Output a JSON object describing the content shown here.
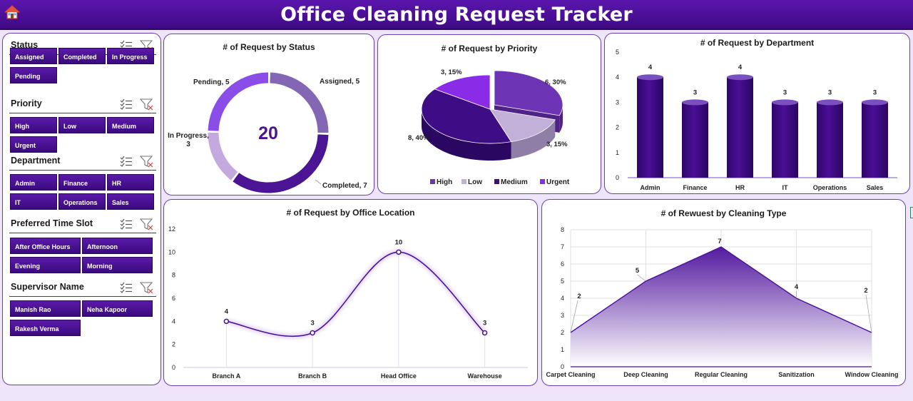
{
  "title": "Office Cleaning Request Tracker",
  "header_icon": "home-icon",
  "slicers": [
    {
      "title": "Status",
      "items": [
        "Assigned",
        "Completed",
        "In Progress",
        "Pending"
      ]
    },
    {
      "title": "Priority",
      "items": [
        "High",
        "Low",
        "Medium",
        "Urgent"
      ]
    },
    {
      "title": "Department",
      "items": [
        "Admin",
        "Finance",
        "HR",
        "IT",
        "Operations",
        "Sales"
      ]
    },
    {
      "title": "Preferred Time Slot",
      "items": [
        "After Office Hours",
        "Afternoon",
        "Evening",
        "Morning"
      ]
    },
    {
      "title": "Supervisor Name",
      "items": [
        "Manish Rao",
        "Neha Kapoor",
        "Rakesh Verma"
      ]
    }
  ],
  "slicer_icons": [
    "multi-select-icon",
    "clear-filter-icon"
  ],
  "colors": {
    "header": "#4b0f9a",
    "accent": "#4b0f9a",
    "dark": "#3a0a7a",
    "light": "#8a5cf0",
    "pale": "#c2a8dc",
    "mid": "#7d5fb0"
  },
  "charts": {
    "status": {
      "title": "# of Request  by Status",
      "total": "20"
    },
    "priority": {
      "title": "# of Request  by Priority"
    },
    "department": {
      "title": "# of Request  by Department"
    },
    "location": {
      "title": "# of Request  by Office Location"
    },
    "cleaning": {
      "title": "# of Rewuest by Cleaning Type"
    }
  },
  "chart_data": [
    {
      "type": "pie",
      "variant": "doughnut",
      "title": "# of Request  by Status",
      "categories": [
        "Assigned",
        "Completed",
        "In Progress",
        "Pending"
      ],
      "values": [
        5,
        7,
        3,
        5
      ],
      "data_labels": [
        "Assigned, 5",
        "Completed, 7",
        "In Progress, 3",
        "Pending, 5"
      ],
      "center_label": "20"
    },
    {
      "type": "pie",
      "variant": "3d",
      "title": "# of Request  by Priority",
      "categories": [
        "High",
        "Low",
        "Medium",
        "Urgent"
      ],
      "values": [
        6,
        3,
        8,
        3
      ],
      "data_labels": [
        "6, 30%",
        "3, 15%",
        "8, 40%",
        "3, 15%"
      ],
      "legend": "bottom"
    },
    {
      "type": "bar",
      "title": "# of Request  by Department",
      "categories": [
        "Admin",
        "Finance",
        "HR",
        "IT",
        "Operations",
        "Sales"
      ],
      "values": [
        4,
        3,
        4,
        3,
        3,
        3
      ],
      "ylim": [
        0,
        5
      ],
      "yticks": [
        0,
        1,
        2,
        3,
        4,
        5
      ]
    },
    {
      "type": "line",
      "title": "# of Request  by Office Location",
      "categories": [
        "Branch A",
        "Branch B",
        "Head Office",
        "Warehouse"
      ],
      "values": [
        4,
        3,
        10,
        3
      ],
      "ylim": [
        0,
        12
      ],
      "yticks": [
        0,
        2,
        4,
        6,
        8,
        10,
        12
      ]
    },
    {
      "type": "area",
      "title": "# of Rewuest by Cleaning Type",
      "categories": [
        "Carpet Cleaning",
        "Deep Cleaning",
        "Regular Cleaning",
        "Sanitization",
        "Window Cleaning"
      ],
      "values": [
        2,
        5,
        7,
        4,
        2
      ],
      "ylim": [
        0,
        8
      ],
      "yticks": [
        0,
        1,
        2,
        3,
        4,
        5,
        6,
        7,
        8
      ],
      "grid": true
    }
  ]
}
